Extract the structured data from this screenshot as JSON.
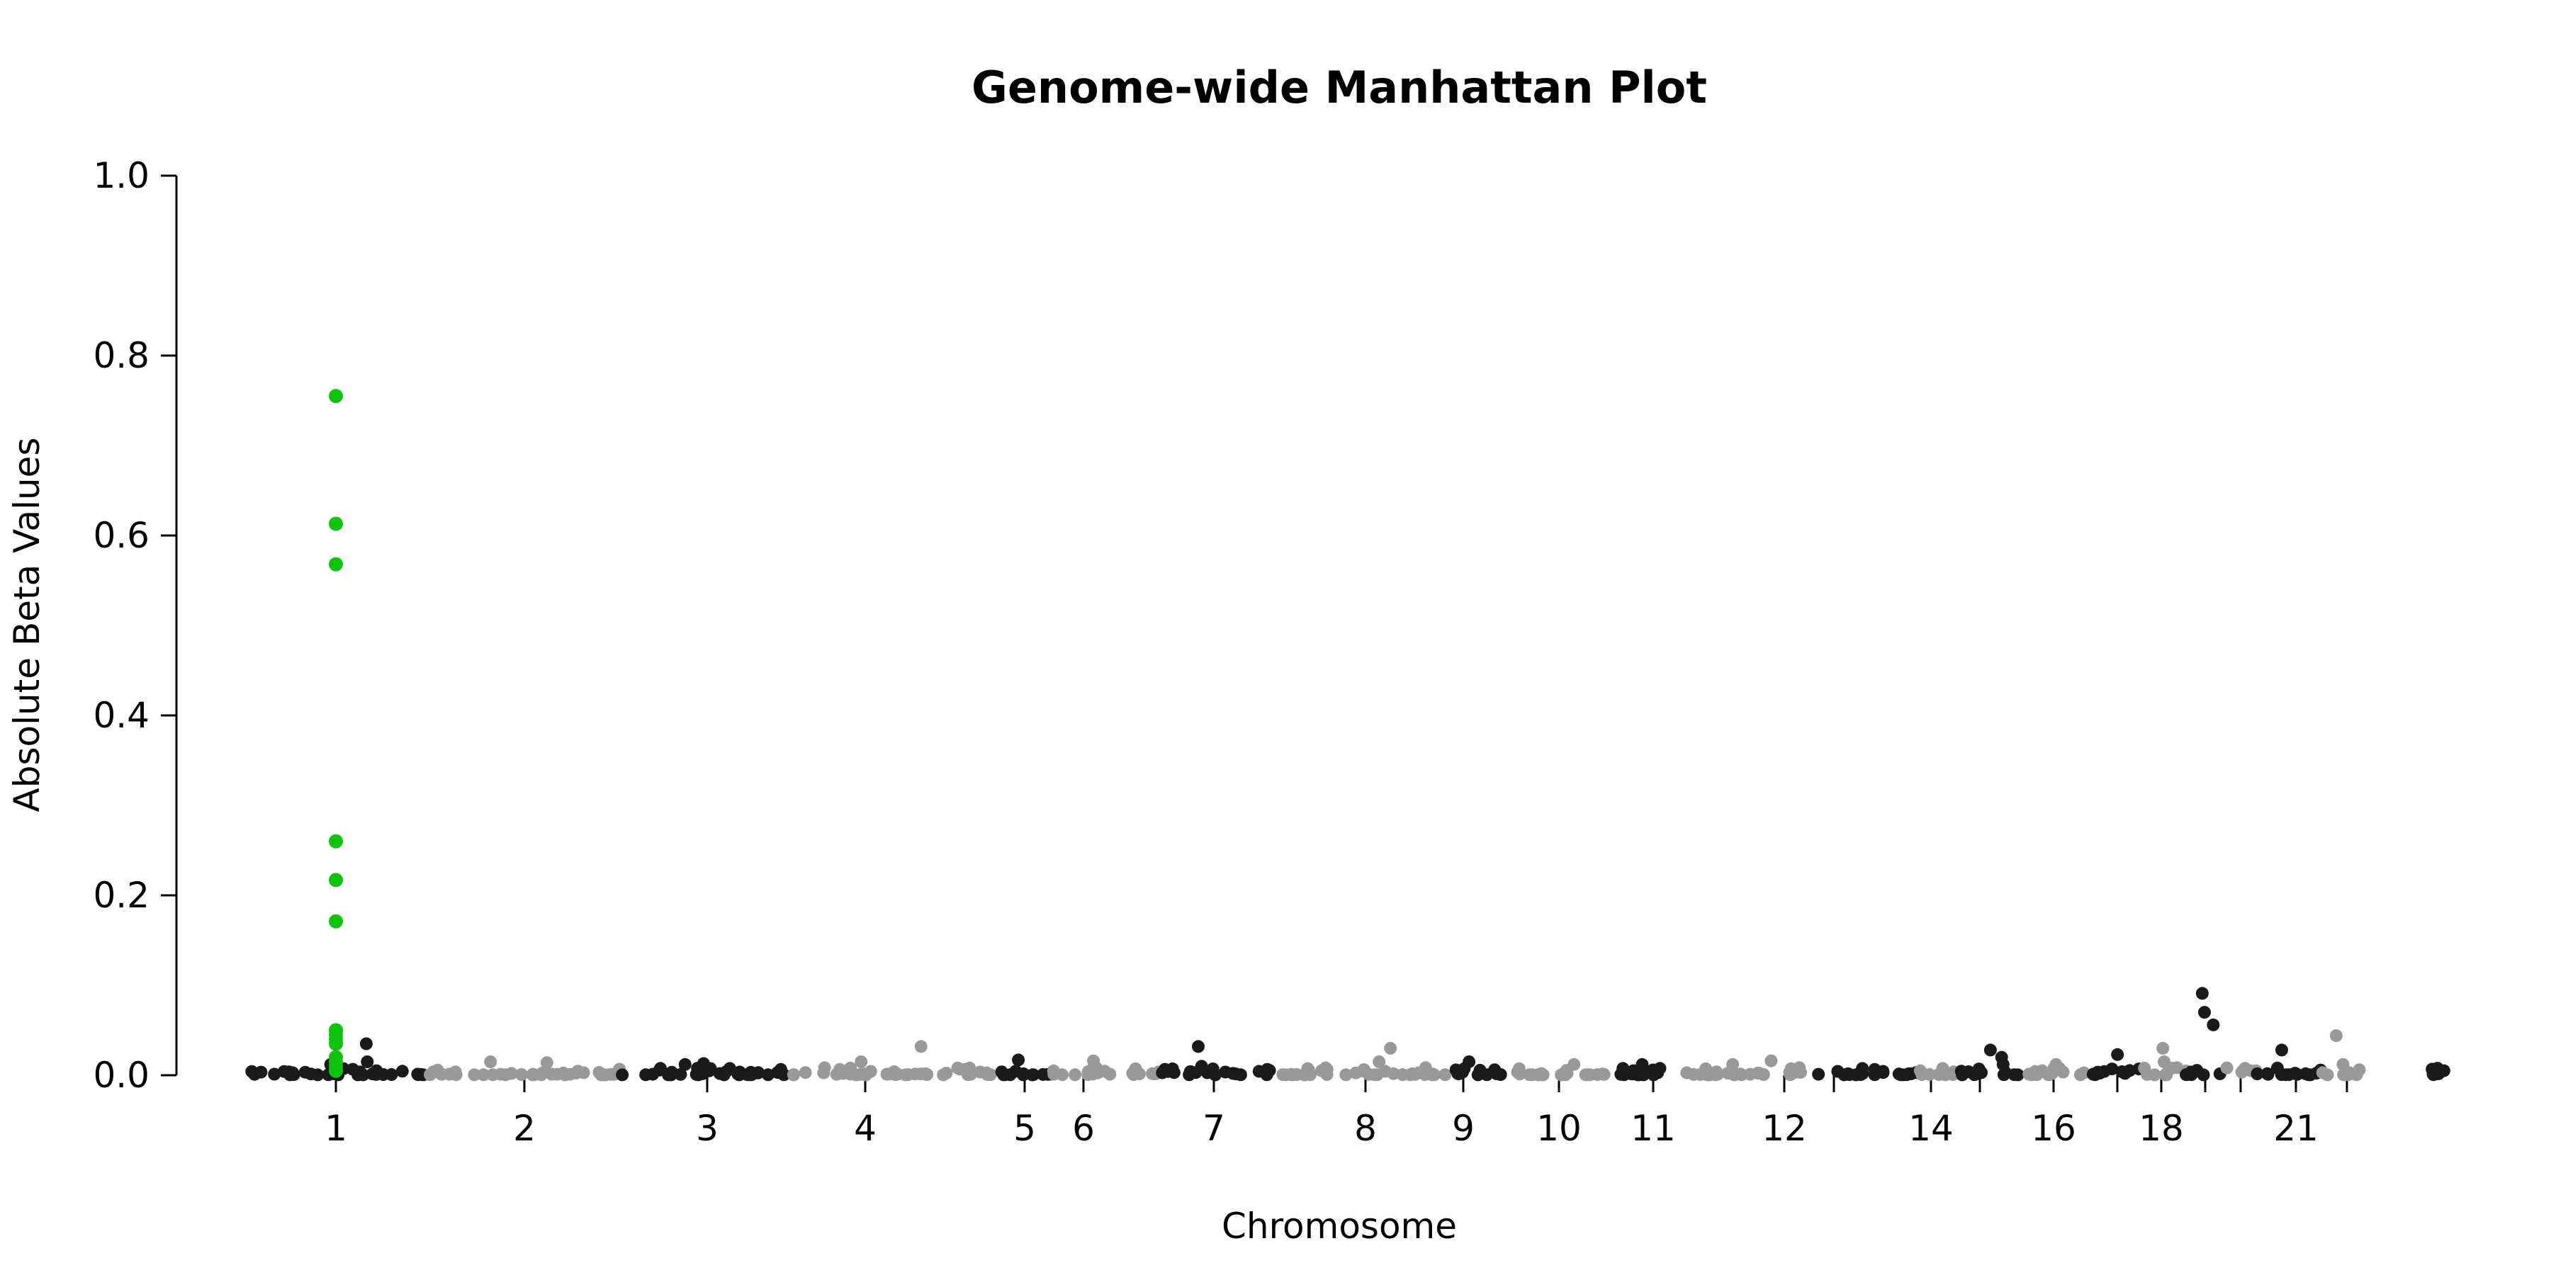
{
  "chart_data": {
    "type": "scatter",
    "title": "Genome-wide Manhattan Plot",
    "xlabel": "Chromosome",
    "ylabel": "Absolute Beta Values",
    "ylim": [
      0,
      1.0
    ],
    "yticks": [
      "0.0",
      "0.2",
      "0.4",
      "0.6",
      "0.8",
      "1.0"
    ],
    "chromosomes": [
      {
        "chr": 1,
        "label": "1",
        "shown": true
      },
      {
        "chr": 2,
        "label": "2",
        "shown": true
      },
      {
        "chr": 3,
        "label": "3",
        "shown": true
      },
      {
        "chr": 4,
        "label": "4",
        "shown": true
      },
      {
        "chr": 5,
        "label": "5",
        "shown": true
      },
      {
        "chr": 6,
        "label": "6",
        "shown": true
      },
      {
        "chr": 7,
        "label": "7",
        "shown": true
      },
      {
        "chr": 8,
        "label": "8",
        "shown": true
      },
      {
        "chr": 9,
        "label": "9",
        "shown": true
      },
      {
        "chr": 10,
        "label": "10",
        "shown": true
      },
      {
        "chr": 11,
        "label": "11",
        "shown": true
      },
      {
        "chr": 12,
        "label": "12",
        "shown": true
      },
      {
        "chr": 13,
        "label": "",
        "shown": false
      },
      {
        "chr": 14,
        "label": "14",
        "shown": true
      },
      {
        "chr": 15,
        "label": "",
        "shown": false
      },
      {
        "chr": 16,
        "label": "16",
        "shown": true
      },
      {
        "chr": 17,
        "label": "",
        "shown": false
      },
      {
        "chr": 18,
        "label": "18",
        "shown": true
      },
      {
        "chr": 19,
        "label": "",
        "shown": false
      },
      {
        "chr": 20,
        "label": "",
        "shown": false
      },
      {
        "chr": 21,
        "label": "21",
        "shown": true
      },
      {
        "chr": 22,
        "label": "",
        "shown": false
      },
      {
        "chr": 23,
        "label": "",
        "shown": false
      }
    ],
    "highlight": {
      "chr": 1,
      "values": [
        0.755,
        0.613,
        0.568,
        0.26,
        0.217,
        0.171,
        0.05,
        0.045,
        0.04,
        0.035,
        0.02,
        0.015,
        0.01,
        0.005
      ]
    },
    "peaks": [
      {
        "chr": 1,
        "values": [
          0.035,
          0.015,
          0.012
        ]
      },
      {
        "chr": 2,
        "values": [
          0.015,
          0.014
        ]
      },
      {
        "chr": 3,
        "values": [
          0.013,
          0.012
        ]
      },
      {
        "chr": 4,
        "values": [
          0.015,
          0.032
        ]
      },
      {
        "chr": 5,
        "values": [
          0.017
        ]
      },
      {
        "chr": 6,
        "values": [
          0.016
        ]
      },
      {
        "chr": 7,
        "values": [
          0.032,
          0.01
        ]
      },
      {
        "chr": 8,
        "values": [
          0.03,
          0.015
        ]
      },
      {
        "chr": 9,
        "values": [
          0.015
        ]
      },
      {
        "chr": 10,
        "values": [
          0.012
        ]
      },
      {
        "chr": 11,
        "values": [
          0.012
        ]
      },
      {
        "chr": 12,
        "values": [
          0.016,
          0.012
        ]
      },
      {
        "chr": 15,
        "values": [
          0.028,
          0.02,
          0.012
        ]
      },
      {
        "chr": 16,
        "values": [
          0.012
        ]
      },
      {
        "chr": 17,
        "values": [
          0.023
        ]
      },
      {
        "chr": 18,
        "values": [
          0.03,
          0.015
        ]
      },
      {
        "chr": 19,
        "values": [
          0.091,
          0.07,
          0.056
        ]
      },
      {
        "chr": 21,
        "values": [
          0.028,
          0.008
        ]
      },
      {
        "chr": 22,
        "values": [
          0.044,
          0.012
        ]
      }
    ],
    "colors": {
      "odd": "#1a1a1a",
      "even": "#999999",
      "highlight": "#0fc40f"
    }
  }
}
